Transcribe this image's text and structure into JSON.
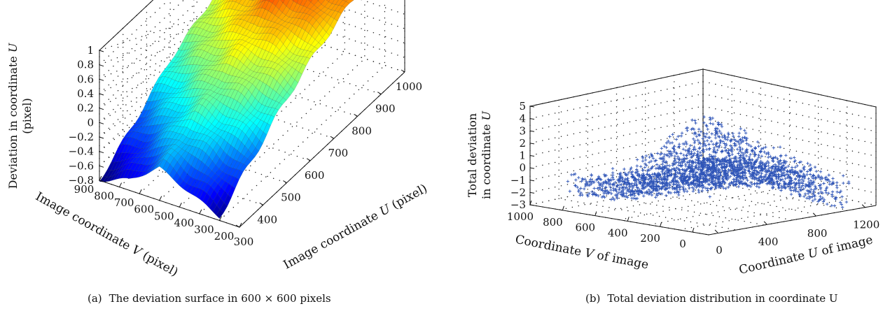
{
  "chart_data": [
    {
      "id": "a",
      "type": "surface",
      "caption_label": "(a)",
      "caption": "The deviation surface in 600 × 600 pixels",
      "xlabel": "Image coordinate U (pixel)",
      "ylabel": "Image coordinate V (pixel)",
      "zlabel": "Deviation in coordinate U (pixel)",
      "xlim": [
        300,
        1000
      ],
      "ylim": [
        200,
        900
      ],
      "zlim": [
        -0.8,
        1
      ],
      "xticks": [
        "300",
        "400",
        "500",
        "600",
        "700",
        "800",
        "900",
        "1000"
      ],
      "yticks": [
        "900",
        "800",
        "700",
        "600",
        "500",
        "400",
        "300",
        "200"
      ],
      "zticks": [
        "1",
        "0.8",
        "0.6",
        "0.4",
        "0.2",
        "0",
        "−0.2",
        "−0.4",
        "−0.6",
        "−0.8"
      ],
      "colormap": "jet",
      "surface_grid": {
        "u": [
          300,
          450,
          600,
          750,
          900
        ],
        "v": [
          300,
          450,
          600,
          750,
          900
        ],
        "z": [
          [
            -0.75,
            -0.55,
            -0.35,
            -0.65,
            -0.8
          ],
          [
            -0.35,
            -0.15,
            -0.05,
            -0.25,
            -0.45
          ],
          [
            0.05,
            0.2,
            0.25,
            0.1,
            -0.05
          ],
          [
            0.35,
            0.5,
            0.55,
            0.4,
            0.2
          ],
          [
            0.55,
            0.75,
            1.0,
            0.7,
            0.5
          ]
        ]
      },
      "grid": true
    },
    {
      "id": "b",
      "type": "scatter",
      "caption_label": "(b)",
      "caption": "Total deviation distribution in coordinate U",
      "xlabel": "Coordinate U of image",
      "ylabel": "Coordinate V of image",
      "zlabel": "Total deviation in coordinate U",
      "xlim": [
        0,
        1300
      ],
      "ylim": [
        0,
        1000
      ],
      "zlim": [
        -3,
        5
      ],
      "xticks": [
        "0",
        "400",
        "800",
        "1200"
      ],
      "yticks": [
        "1000",
        "800",
        "600",
        "400",
        "200",
        "0"
      ],
      "zticks": [
        "5",
        "4",
        "3",
        "2",
        "1",
        "0",
        "−1",
        "−2",
        "−3"
      ],
      "marker": "+",
      "marker_color": "#2f55b8",
      "description_note": "",
      "grid": true
    }
  ]
}
